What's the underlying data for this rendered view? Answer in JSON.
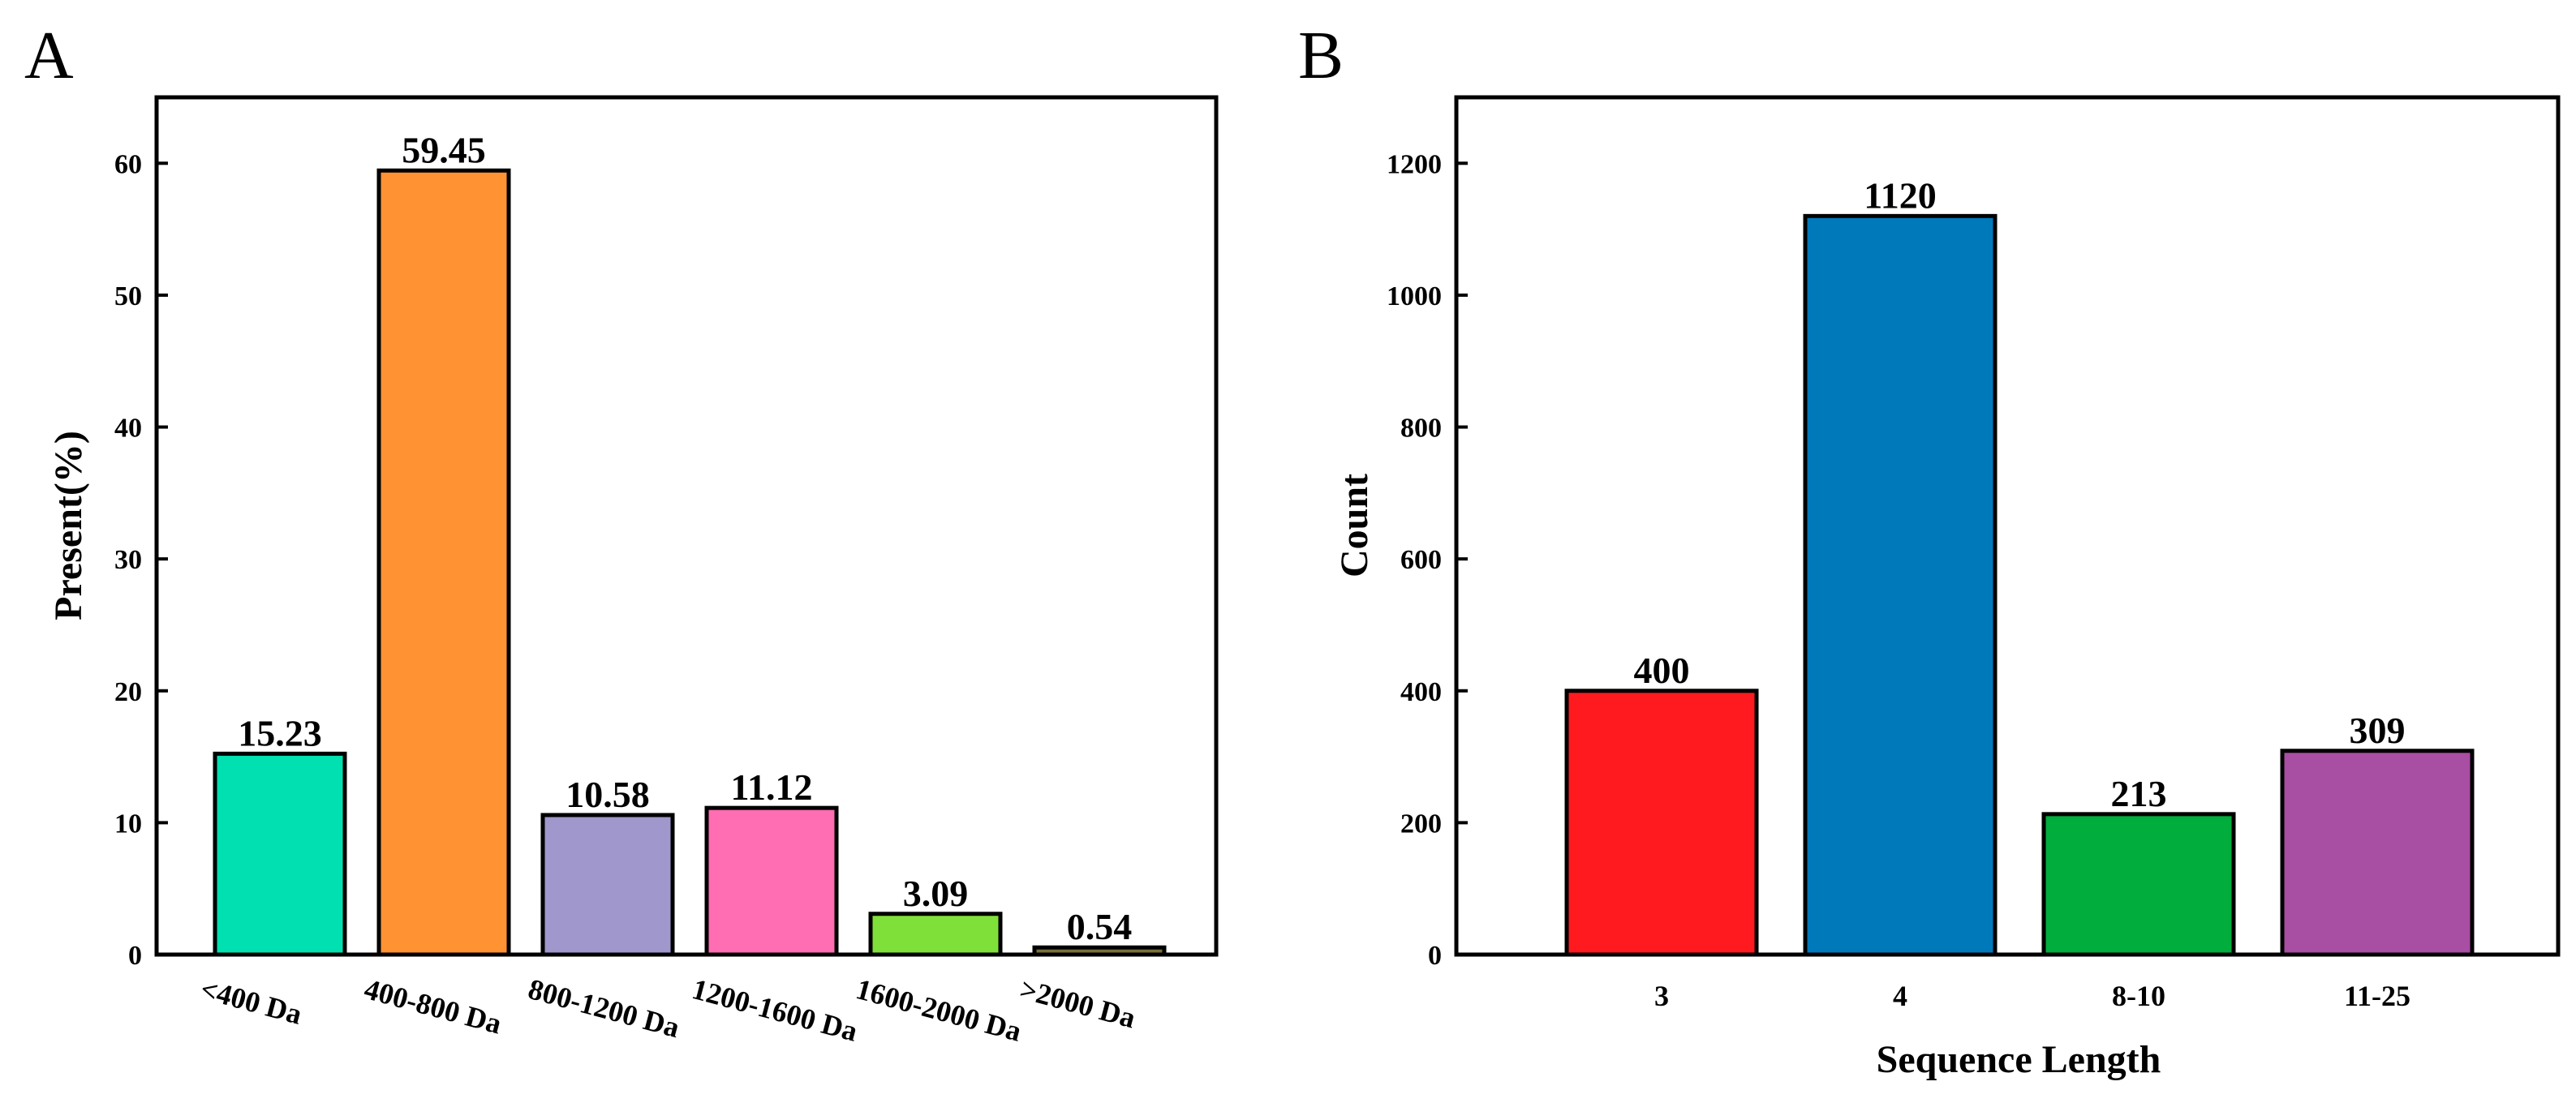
{
  "chart_data": [
    {
      "panel": "A",
      "type": "bar",
      "title": "",
      "xlabel": "",
      "ylabel": "Present(%)",
      "ylim": [
        0,
        65
      ],
      "yticks": [
        0,
        10,
        20,
        30,
        40,
        50,
        60
      ],
      "grid": false,
      "categories": [
        "<400 Da",
        "400-800 Da",
        "800-1200 Da",
        "1200-1600 Da",
        "1600-2000 Da",
        ">2000 Da"
      ],
      "values": [
        15.23,
        59.45,
        10.58,
        11.12,
        3.09,
        0.54
      ],
      "value_labels": [
        "15.23",
        "59.45",
        "10.58",
        "11.12",
        "3.09",
        "0.54"
      ],
      "colors": [
        "#00e0b0",
        "#ff9233",
        "#a097cc",
        "#ff6db2",
        "#7fe03a",
        "#7a6f3a"
      ]
    },
    {
      "panel": "B",
      "type": "bar",
      "title": "",
      "xlabel": "Sequence Length",
      "ylabel": "Count",
      "ylim": [
        0,
        1300
      ],
      "yticks": [
        0,
        200,
        400,
        600,
        800,
        1000,
        1200
      ],
      "grid": false,
      "categories": [
        "3",
        "4",
        "8-10",
        "11-25"
      ],
      "values": [
        400,
        1120,
        213,
        309
      ],
      "value_labels": [
        "400",
        "1120",
        "213",
        "309"
      ],
      "colors": [
        "#ff1a1f",
        "#0079bb",
        "#00ad3d",
        "#a84ea3"
      ]
    }
  ]
}
